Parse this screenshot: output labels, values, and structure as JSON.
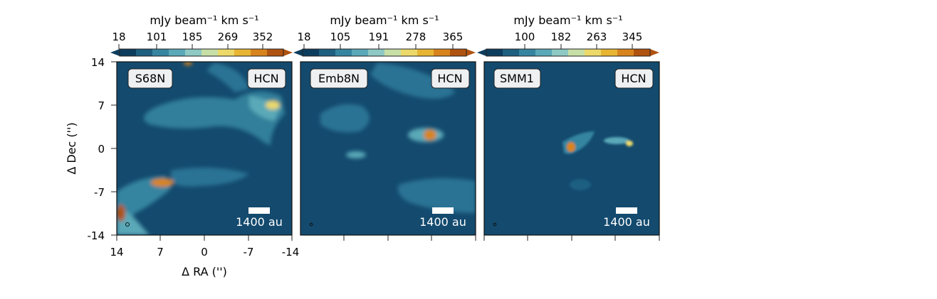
{
  "chart_data": [
    {
      "type": "heatmap",
      "source": "S68N",
      "line": "HCN",
      "colorbar": {
        "label": "mJy beam⁻¹ km s⁻¹",
        "ticks": [
          18,
          101,
          185,
          269,
          352
        ]
      },
      "x": {
        "label": "Δ RA ('')",
        "ticks": [
          "14",
          "7",
          "0",
          "-7",
          "-14"
        ],
        "range": [
          14,
          -14
        ]
      },
      "y": {
        "label": "Δ Dec ('')",
        "ticks": [
          "14",
          "7",
          "0",
          "-7",
          "-14"
        ],
        "range": [
          -14,
          14
        ]
      },
      "scalebar_label": "1400 au"
    },
    {
      "type": "heatmap",
      "source": "Emb8N",
      "line": "HCN",
      "colorbar": {
        "label": "mJy beam⁻¹ km s⁻¹",
        "ticks": [
          18,
          105,
          191,
          278,
          365
        ]
      },
      "scalebar_label": "1400 au"
    },
    {
      "type": "heatmap",
      "source": "SMM1",
      "line": "HCN",
      "colorbar": {
        "label": "mJy beam⁻¹ km s⁻¹",
        "ticks": [
          100,
          182,
          263,
          345
        ]
      },
      "scalebar_label": "1400 au"
    }
  ],
  "colors": {
    "background": "#134a6e",
    "cmap": [
      "#0d3d5e",
      "#1f5f80",
      "#3585a0",
      "#5aa9b8",
      "#8ec9c4",
      "#c7dfa6",
      "#ecd96a",
      "#e8b533",
      "#d8841d",
      "#b05311"
    ]
  }
}
